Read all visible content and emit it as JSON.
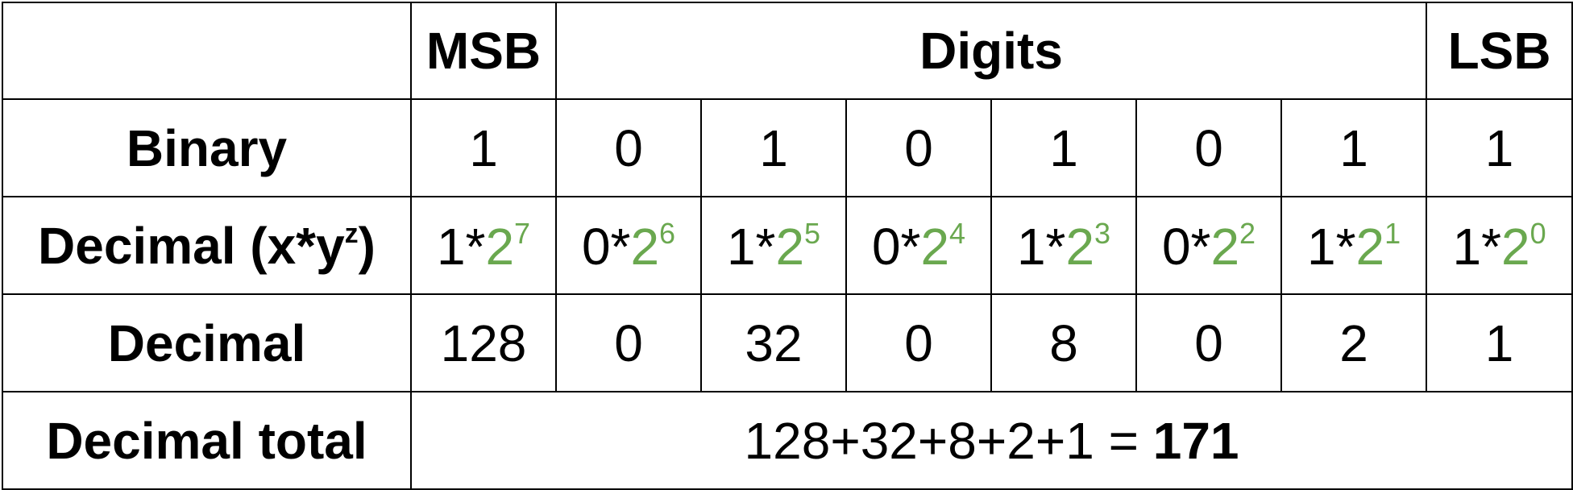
{
  "header": {
    "msb": "MSB",
    "digits": "Digits",
    "lsb": "LSB"
  },
  "rows": {
    "binary_label": "Binary",
    "decimal_xyz_label": "Decimal (x*y",
    "decimal_xyz_sup": "z",
    "decimal_xyz_close": ")",
    "decimal_label": "Decimal",
    "total_label": "Decimal total"
  },
  "binary_digits": [
    "1",
    "0",
    "1",
    "0",
    "1",
    "0",
    "1",
    "1"
  ],
  "powers": [
    {
      "x": "1*",
      "base": "2",
      "exp": "7"
    },
    {
      "x": "0*",
      "base": "2",
      "exp": "6"
    },
    {
      "x": "1*",
      "base": "2",
      "exp": "5"
    },
    {
      "x": "0*",
      "base": "2",
      "exp": "4"
    },
    {
      "x": "1*",
      "base": "2",
      "exp": "3"
    },
    {
      "x": "0*",
      "base": "2",
      "exp": "2"
    },
    {
      "x": "1*",
      "base": "2",
      "exp": "1"
    },
    {
      "x": "1*",
      "base": "2",
      "exp": "0"
    }
  ],
  "decimal_values": [
    "128",
    "0",
    "32",
    "0",
    "8",
    "0",
    "2",
    "1"
  ],
  "total": {
    "expression": "128+32+8+2+1 = ",
    "sum": "171"
  },
  "colors": {
    "binary_digit": "#ee1c25",
    "base_exponent": "#6aa84f",
    "grid": "#000000"
  }
}
